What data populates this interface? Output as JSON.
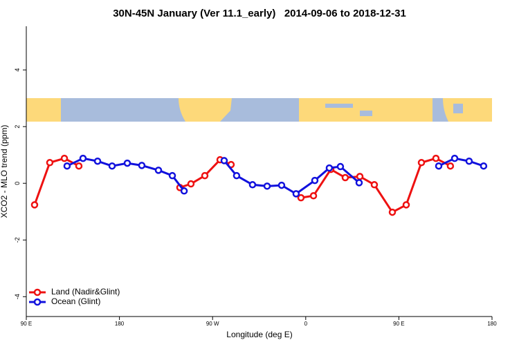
{
  "chart_data": {
    "type": "line",
    "title": "30N-45N January (Ver 11.1_early)   2014-09-06 to 2018-12-31",
    "x_label": "Longitude (deg E)",
    "y_label": "XCO2 - MLO trend (ppm)",
    "xlim": [
      90,
      540
    ],
    "ylim": [
      -4.7,
      5.54
    ],
    "xticks": [
      {
        "value": 90,
        "label": "90 E"
      },
      {
        "value": 180,
        "label": "180"
      },
      {
        "value": 270,
        "label": "90 W"
      },
      {
        "value": 360,
        "label": "0"
      },
      {
        "value": 450,
        "label": "90 E"
      },
      {
        "value": 540,
        "label": "180"
      }
    ],
    "yticks": [
      -4,
      -2,
      0,
      2,
      4
    ],
    "legend": "bottom-left",
    "series": [
      {
        "name": "Land (Nadir&Glint)",
        "color": "#ee1111",
        "x": [
          98,
          112.7,
          126.8,
          140.8,
          null,
          238.4,
          249.1,
          262.5,
          277.2,
          287.9,
          null,
          355.4,
          367.5,
          384.2,
          398.2,
          412.3,
          426.3,
          443.7,
          457.1,
          471.8,
          485.8,
          499.8
        ],
        "values": [
          -0.76,
          0.73,
          0.88,
          0.61,
          null,
          -0.15,
          -0.02,
          0.27,
          0.83,
          0.66,
          null,
          -0.51,
          -0.44,
          0.49,
          0.2,
          0.24,
          -0.05,
          -1.02,
          -0.76,
          0.73,
          0.88,
          0.61
        ]
      },
      {
        "name": "Ocean (Glint)",
        "color": "#1111dd",
        "x": [
          129.4,
          144.8,
          158.9,
          172.9,
          187.6,
          201.6,
          217.7,
          231.1,
          242.5,
          null,
          281.2,
          293.2,
          308.6,
          322.7,
          336.7,
          350.7,
          368.8,
          382.8,
          393.5,
          411.6,
          null,
          488.5,
          503.9,
          517.9,
          531.9
        ],
        "values": [
          0.61,
          0.88,
          0.78,
          0.61,
          0.71,
          0.63,
          0.46,
          0.27,
          -0.27,
          null,
          0.8,
          0.27,
          -0.05,
          -0.1,
          -0.07,
          -0.37,
          0.1,
          0.54,
          0.59,
          0.02,
          null,
          0.61,
          0.88,
          0.78,
          0.61
        ]
      }
    ]
  }
}
